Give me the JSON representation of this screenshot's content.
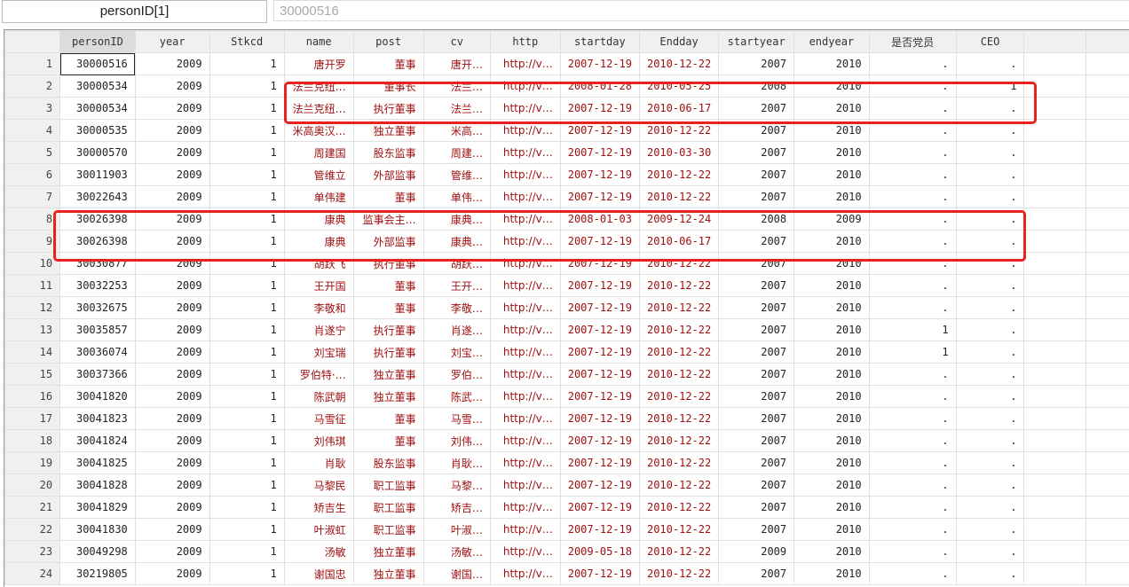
{
  "varbar": {
    "name": "personID[1]",
    "value": "30000516"
  },
  "columns": [
    "",
    "personID",
    "year",
    "Stkcd",
    "name",
    "post",
    "cv",
    "http",
    "startday",
    "Endday",
    "startyear",
    "endyear",
    "是否党员",
    "CEO",
    "",
    ""
  ],
  "rows": [
    [
      "1",
      "30000516",
      "2009",
      "1",
      "唐开罗",
      "董事",
      "唐开…",
      "http://v…",
      "2007-12-19",
      "2010-12-22",
      "2007",
      "2010",
      ".",
      "."
    ],
    [
      "2",
      "30000534",
      "2009",
      "1",
      "法兰克纽…",
      "董事长",
      "法兰…",
      "http://v…",
      "2008-01-28",
      "2010-05-25",
      "2008",
      "2010",
      ".",
      "1"
    ],
    [
      "3",
      "30000534",
      "2009",
      "1",
      "法兰克纽…",
      "执行董事",
      "法兰…",
      "http://v…",
      "2007-12-19",
      "2010-06-17",
      "2007",
      "2010",
      ".",
      "."
    ],
    [
      "4",
      "30000535",
      "2009",
      "1",
      "米高奥汉…",
      "独立董事",
      "米高…",
      "http://v…",
      "2007-12-19",
      "2010-12-22",
      "2007",
      "2010",
      ".",
      "."
    ],
    [
      "5",
      "30000570",
      "2009",
      "1",
      "周建国",
      "股东监事",
      "周建…",
      "http://v…",
      "2007-12-19",
      "2010-03-30",
      "2007",
      "2010",
      ".",
      "."
    ],
    [
      "6",
      "30011903",
      "2009",
      "1",
      "管维立",
      "外部监事",
      "管维…",
      "http://v…",
      "2007-12-19",
      "2010-12-22",
      "2007",
      "2010",
      ".",
      "."
    ],
    [
      "7",
      "30022643",
      "2009",
      "1",
      "单伟建",
      "董事",
      "单伟…",
      "http://v…",
      "2007-12-19",
      "2010-12-22",
      "2007",
      "2010",
      ".",
      "."
    ],
    [
      "8",
      "30026398",
      "2009",
      "1",
      "康典",
      "监事会主…",
      "康典…",
      "http://v…",
      "2008-01-03",
      "2009-12-24",
      "2008",
      "2009",
      ".",
      "."
    ],
    [
      "9",
      "30026398",
      "2009",
      "1",
      "康典",
      "外部监事",
      "康典…",
      "http://v…",
      "2007-12-19",
      "2010-06-17",
      "2007",
      "2010",
      ".",
      "."
    ],
    [
      "10",
      "30030877",
      "2009",
      "1",
      "胡跃飞",
      "执行董事",
      "胡跃…",
      "http://v…",
      "2007-12-19",
      "2010-12-22",
      "2007",
      "2010",
      ".",
      "."
    ],
    [
      "11",
      "30032253",
      "2009",
      "1",
      "王开国",
      "董事",
      "王开…",
      "http://v…",
      "2007-12-19",
      "2010-12-22",
      "2007",
      "2010",
      ".",
      "."
    ],
    [
      "12",
      "30032675",
      "2009",
      "1",
      "李敬和",
      "董事",
      "李敬…",
      "http://v…",
      "2007-12-19",
      "2010-12-22",
      "2007",
      "2010",
      ".",
      "."
    ],
    [
      "13",
      "30035857",
      "2009",
      "1",
      "肖遂宁",
      "执行董事",
      "肖遂…",
      "http://v…",
      "2007-12-19",
      "2010-12-22",
      "2007",
      "2010",
      "1",
      "."
    ],
    [
      "14",
      "30036074",
      "2009",
      "1",
      "刘宝瑞",
      "执行董事",
      "刘宝…",
      "http://v…",
      "2007-12-19",
      "2010-12-22",
      "2007",
      "2010",
      "1",
      "."
    ],
    [
      "15",
      "30037366",
      "2009",
      "1",
      "罗伯特·…",
      "独立董事",
      "罗伯…",
      "http://v…",
      "2007-12-19",
      "2010-12-22",
      "2007",
      "2010",
      ".",
      "."
    ],
    [
      "16",
      "30041820",
      "2009",
      "1",
      "陈武朝",
      "独立董事",
      "陈武…",
      "http://v…",
      "2007-12-19",
      "2010-12-22",
      "2007",
      "2010",
      ".",
      "."
    ],
    [
      "17",
      "30041823",
      "2009",
      "1",
      "马雪征",
      "董事",
      "马雪…",
      "http://v…",
      "2007-12-19",
      "2010-12-22",
      "2007",
      "2010",
      ".",
      "."
    ],
    [
      "18",
      "30041824",
      "2009",
      "1",
      "刘伟琪",
      "董事",
      "刘伟…",
      "http://v…",
      "2007-12-19",
      "2010-12-22",
      "2007",
      "2010",
      ".",
      "."
    ],
    [
      "19",
      "30041825",
      "2009",
      "1",
      "肖耿",
      "股东监事",
      "肖耿…",
      "http://v…",
      "2007-12-19",
      "2010-12-22",
      "2007",
      "2010",
      ".",
      "."
    ],
    [
      "20",
      "30041828",
      "2009",
      "1",
      "马黎民",
      "职工监事",
      "马黎…",
      "http://v…",
      "2007-12-19",
      "2010-12-22",
      "2007",
      "2010",
      ".",
      "."
    ],
    [
      "21",
      "30041829",
      "2009",
      "1",
      "矫吉生",
      "职工监事",
      "矫吉…",
      "http://v…",
      "2007-12-19",
      "2010-12-22",
      "2007",
      "2010",
      ".",
      "."
    ],
    [
      "22",
      "30041830",
      "2009",
      "1",
      "叶淑虹",
      "职工监事",
      "叶淑…",
      "http://v…",
      "2007-12-19",
      "2010-12-22",
      "2007",
      "2010",
      ".",
      "."
    ],
    [
      "23",
      "30049298",
      "2009",
      "1",
      "汤敏",
      "独立董事",
      "汤敏…",
      "http://v…",
      "2009-05-18",
      "2010-12-22",
      "2009",
      "2010",
      ".",
      "."
    ],
    [
      "24",
      "30219805",
      "2009",
      "1",
      "谢国忠",
      "独立董事",
      "谢国…",
      "http://v…",
      "2007-12-19",
      "2010-12-22",
      "2007",
      "2010",
      ".",
      "."
    ]
  ],
  "colors": {
    "string_text": "#a01010",
    "highlight_box": "#e8221c"
  }
}
